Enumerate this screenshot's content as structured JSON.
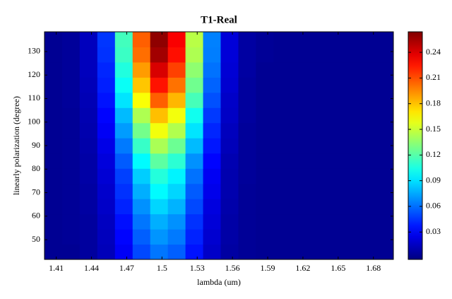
{
  "chart_data": {
    "type": "heatmap",
    "title": "T1-Real",
    "x_label": "lambda (um)",
    "y_label": "linearly polarization (degree)",
    "colormap": "jet",
    "x": [
      1.4075,
      1.4225,
      1.4375,
      1.4525,
      1.4675,
      1.4825,
      1.4975,
      1.5125,
      1.5275,
      1.5425,
      1.5575,
      1.5725,
      1.5875,
      1.6025,
      1.6175,
      1.6325,
      1.6475,
      1.6625,
      1.6775,
      1.6925
    ],
    "y": [
      44.8,
      51.3,
      57.7,
      64.2,
      70.6,
      77.1,
      83.5,
      90.0,
      96.5,
      102.9,
      109.4,
      115.8,
      122.3,
      128.7,
      135.2
    ],
    "z": [
      [
        0.003,
        0.003,
        0.006,
        0.013,
        0.029,
        0.05,
        0.062,
        0.056,
        0.036,
        0.017,
        0.007,
        0.004,
        0.003,
        0.003,
        0.003,
        0.003,
        0.003,
        0.003,
        0.003,
        0.003
      ],
      [
        0.003,
        0.004,
        0.006,
        0.014,
        0.032,
        0.056,
        0.07,
        0.063,
        0.04,
        0.019,
        0.008,
        0.004,
        0.003,
        0.003,
        0.003,
        0.003,
        0.003,
        0.003,
        0.003,
        0.003
      ],
      [
        0.003,
        0.004,
        0.006,
        0.015,
        0.035,
        0.062,
        0.077,
        0.069,
        0.044,
        0.021,
        0.008,
        0.004,
        0.003,
        0.003,
        0.003,
        0.003,
        0.003,
        0.003,
        0.003,
        0.003
      ],
      [
        0.003,
        0.004,
        0.007,
        0.017,
        0.04,
        0.069,
        0.087,
        0.078,
        0.05,
        0.023,
        0.009,
        0.004,
        0.003,
        0.003,
        0.003,
        0.003,
        0.003,
        0.003,
        0.003,
        0.003
      ],
      [
        0.003,
        0.004,
        0.007,
        0.018,
        0.044,
        0.077,
        0.097,
        0.087,
        0.055,
        0.026,
        0.01,
        0.004,
        0.003,
        0.003,
        0.003,
        0.003,
        0.003,
        0.003,
        0.003,
        0.003
      ],
      [
        0.003,
        0.004,
        0.008,
        0.02,
        0.048,
        0.085,
        0.107,
        0.095,
        0.061,
        0.028,
        0.01,
        0.005,
        0.003,
        0.003,
        0.003,
        0.003,
        0.003,
        0.003,
        0.003,
        0.003
      ],
      [
        0.003,
        0.004,
        0.008,
        0.022,
        0.055,
        0.097,
        0.122,
        0.109,
        0.069,
        0.032,
        0.011,
        0.005,
        0.003,
        0.003,
        0.003,
        0.003,
        0.003,
        0.003,
        0.003,
        0.003
      ],
      [
        0.003,
        0.004,
        0.009,
        0.025,
        0.063,
        0.112,
        0.142,
        0.126,
        0.08,
        0.037,
        0.013,
        0.005,
        0.003,
        0.003,
        0.003,
        0.003,
        0.003,
        0.003,
        0.003,
        0.003
      ],
      [
        0.003,
        0.004,
        0.01,
        0.029,
        0.072,
        0.128,
        0.161,
        0.144,
        0.091,
        0.041,
        0.014,
        0.005,
        0.003,
        0.003,
        0.003,
        0.003,
        0.003,
        0.003,
        0.003,
        0.003
      ],
      [
        0.003,
        0.004,
        0.011,
        0.032,
        0.08,
        0.143,
        0.181,
        0.161,
        0.102,
        0.046,
        0.016,
        0.006,
        0.003,
        0.003,
        0.003,
        0.003,
        0.003,
        0.003,
        0.003,
        0.003
      ],
      [
        0.003,
        0.005,
        0.012,
        0.036,
        0.091,
        0.163,
        0.206,
        0.183,
        0.116,
        0.052,
        0.017,
        0.006,
        0.003,
        0.003,
        0.003,
        0.003,
        0.003,
        0.003,
        0.003,
        0.003
      ],
      [
        0.003,
        0.005,
        0.013,
        0.039,
        0.1,
        0.179,
        0.226,
        0.201,
        0.127,
        0.057,
        0.019,
        0.006,
        0.003,
        0.003,
        0.003,
        0.003,
        0.003,
        0.003,
        0.003,
        0.003
      ],
      [
        0.003,
        0.005,
        0.014,
        0.041,
        0.106,
        0.19,
        0.241,
        0.214,
        0.135,
        0.061,
        0.02,
        0.007,
        0.003,
        0.003,
        0.003,
        0.003,
        0.003,
        0.003,
        0.003,
        0.003
      ],
      [
        0.003,
        0.005,
        0.014,
        0.044,
        0.113,
        0.202,
        0.255,
        0.227,
        0.143,
        0.064,
        0.021,
        0.007,
        0.004,
        0.003,
        0.003,
        0.003,
        0.003,
        0.003,
        0.003,
        0.003
      ],
      [
        0.003,
        0.005,
        0.014,
        0.045,
        0.115,
        0.206,
        0.26,
        0.232,
        0.146,
        0.065,
        0.021,
        0.007,
        0.004,
        0.003,
        0.003,
        0.003,
        0.003,
        0.003,
        0.003,
        0.003
      ]
    ],
    "xlim": [
      1.4,
      1.697
    ],
    "ylim": [
      41.6,
      138.4
    ],
    "zlim": [
      -0.002,
      0.264
    ],
    "xticks": [
      1.41,
      1.44,
      1.47,
      1.5,
      1.53,
      1.56,
      1.59,
      1.62,
      1.65,
      1.68
    ],
    "yticks": [
      50,
      60,
      70,
      80,
      90,
      100,
      110,
      120,
      130
    ],
    "zticks": [
      0.03,
      0.06,
      0.09,
      0.12,
      0.15,
      0.18,
      0.21,
      0.24
    ]
  }
}
